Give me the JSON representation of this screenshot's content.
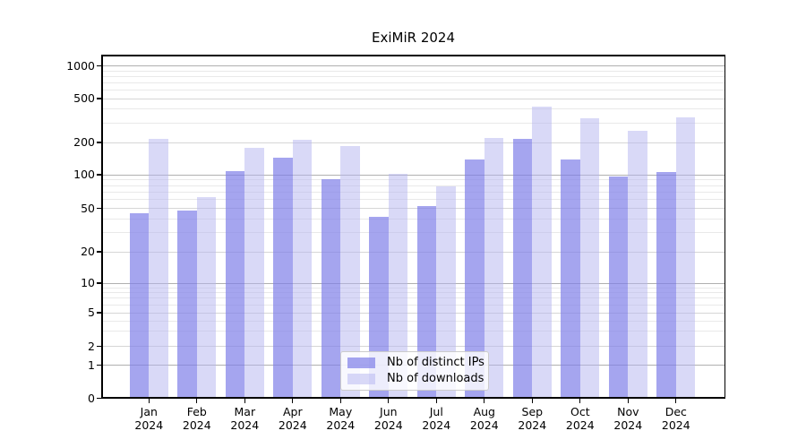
{
  "chart_data": {
    "type": "bar",
    "title": "ExiMiR 2024",
    "categories": [
      "Jan",
      "Feb",
      "Mar",
      "Apr",
      "May",
      "Jun",
      "Jul",
      "Aug",
      "Sep",
      "Oct",
      "Nov",
      "Dec"
    ],
    "x_year": "2024",
    "series": [
      {
        "name": "Nb of distinct IPs",
        "color": "rgba(127,127,232,0.7)",
        "color_hex": "#a6a6ef",
        "values": [
          45,
          48,
          108,
          145,
          92,
          42,
          52,
          140,
          215,
          140,
          96,
          105
        ]
      },
      {
        "name": "Nb of downloads",
        "color": "rgba(179,179,240,0.5)",
        "color_hex": "#d9d9f7",
        "values": [
          215,
          63,
          178,
          213,
          184,
          102,
          78,
          218,
          420,
          330,
          255,
          335
        ]
      }
    ],
    "yscale": "symlog",
    "yticks": [
      1000,
      500,
      200,
      100,
      50,
      20,
      10,
      5,
      2,
      1,
      0
    ],
    "y_minor_ticks": [
      3,
      4,
      6,
      7,
      8,
      9,
      30,
      40,
      60,
      70,
      80,
      90,
      300,
      400,
      600,
      700,
      800,
      900
    ],
    "ylim": [
      0,
      1100
    ],
    "xlabel": "",
    "ylabel": "",
    "grid": true,
    "legend_position": "lower center",
    "colors": {
      "grid_major": "#b0b0b0",
      "grid_mid": "#d6d6d6",
      "grid_minor": "#e9e9e9",
      "spine": "#000000",
      "text": "#000000",
      "legend_border": "#cccccc"
    }
  }
}
